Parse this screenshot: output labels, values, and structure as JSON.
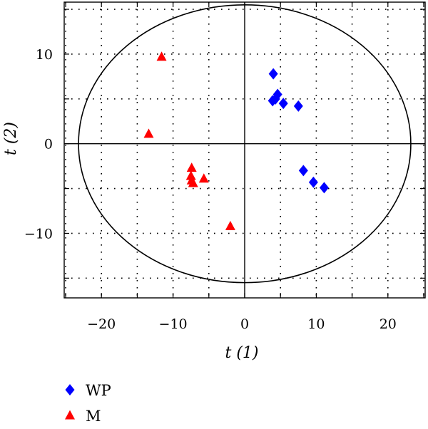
{
  "chart_data": {
    "type": "scatter",
    "title": "",
    "xlabel": "t (1)",
    "ylabel": "t (2)",
    "xlim": [
      -25.2,
      25.2
    ],
    "ylim": [
      -17.2,
      15.8
    ],
    "x_ticks": [
      -20,
      -10,
      0,
      10,
      20
    ],
    "x_tick_labels": [
      "−20",
      "−10",
      "0",
      "10",
      "20"
    ],
    "y_ticks": [
      10,
      0,
      -10
    ],
    "y_tick_labels": [
      "10",
      "0",
      "−10"
    ],
    "x_grid": [
      -25,
      -20,
      -15,
      -10,
      -5,
      5,
      10,
      15,
      20,
      25
    ],
    "y_grid": [
      15,
      10,
      5,
      -5,
      -10,
      -15
    ],
    "grid": true,
    "ellipse": {
      "cx": 0,
      "cy": 0,
      "rx": 23.2,
      "ry": 15.5
    },
    "legend_position": "bottom-left",
    "series": [
      {
        "name": "WP",
        "marker": "diamond",
        "color": "#0000ff",
        "points": [
          [
            4.0,
            7.8
          ],
          [
            4.6,
            5.5
          ],
          [
            4.3,
            5.0
          ],
          [
            3.9,
            4.8
          ],
          [
            5.4,
            4.5
          ],
          [
            7.5,
            4.2
          ],
          [
            8.2,
            -3.0
          ],
          [
            9.6,
            -4.3
          ],
          [
            11.1,
            -4.9
          ]
        ]
      },
      {
        "name": "M",
        "marker": "triangle",
        "color": "#ff0000",
        "points": [
          [
            -11.6,
            9.7
          ],
          [
            -13.4,
            1.1
          ],
          [
            -7.4,
            -2.7
          ],
          [
            -7.5,
            -3.6
          ],
          [
            -5.7,
            -3.9
          ],
          [
            -7.4,
            -4.1
          ],
          [
            -7.2,
            -4.4
          ],
          [
            -2.0,
            -9.2
          ]
        ]
      }
    ]
  }
}
